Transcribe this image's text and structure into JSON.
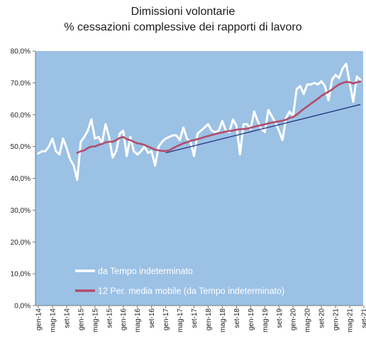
{
  "chart_data": {
    "type": "line",
    "title": "Dimissioni volontarie",
    "subtitle": "% cessazioni complessive dei rapporti di lavoro",
    "xlabel": "",
    "ylabel": "",
    "ylim": [
      0,
      80
    ],
    "y_ticks": [
      "0,0%",
      "10,0%",
      "20,0%",
      "30,0%",
      "40,0%",
      "50,0%",
      "60,0%",
      "70,0%",
      "80,0%"
    ],
    "grid": false,
    "legend_position": "bottom-left inside plot",
    "colors": {
      "plot_background": "#9bc1e5",
      "series_1": "#ffffff",
      "series_2": "#b24b6a",
      "trendline": "#1c2a78"
    },
    "x_ticks": [
      "gen-14",
      "mag-14",
      "set-14",
      "gen-15",
      "mag-15",
      "set-15",
      "gen-16",
      "mag-16",
      "set-16",
      "gen-17",
      "mag-17",
      "set-17",
      "gen-18",
      "mag-18",
      "set-18",
      "gen-19",
      "mag-19",
      "set-19",
      "gen-20",
      "mag-20",
      "set-20",
      "gen-21",
      "mag-21",
      "set-21"
    ],
    "x_start_month": "gen-14",
    "x_end_month": "set-21",
    "series": [
      {
        "name": "da Tempo indeterminato",
        "values": [
          47.8,
          48.5,
          48.5,
          50.0,
          52.5,
          48.5,
          47.5,
          52.5,
          49.5,
          46.0,
          44.0,
          39.5,
          51.5,
          53.0,
          55.0,
          58.5,
          52.5,
          53.0,
          51.0,
          57.0,
          53.0,
          46.5,
          48.5,
          54.0,
          55.0,
          47.0,
          53.0,
          48.5,
          47.5,
          48.5,
          50.0,
          48.0,
          48.5,
          44.0,
          50.0,
          51.5,
          52.5,
          53.0,
          53.5,
          53.5,
          52.0,
          56.0,
          52.5,
          51.5,
          47.0,
          54.0,
          55.0,
          56.0,
          57.0,
          55.0,
          54.5,
          55.0,
          58.0,
          55.0,
          54.5,
          58.5,
          56.5,
          47.5,
          57.0,
          57.0,
          55.5,
          61.0,
          58.0,
          55.5,
          54.5,
          61.5,
          59.5,
          57.5,
          55.0,
          52.0,
          59.0,
          61.0,
          59.5,
          68.0,
          69.0,
          66.5,
          69.5,
          69.5,
          70.0,
          69.5,
          70.5,
          69.0,
          64.5,
          71.0,
          72.5,
          71.5,
          74.5,
          76.0,
          70.0,
          64.0,
          72.0,
          71.0
        ]
      },
      {
        "name": "12 Per. media mobile (da Tempo indeterminato)",
        "values": [
          null,
          null,
          null,
          null,
          null,
          null,
          null,
          null,
          null,
          null,
          null,
          48.0,
          48.5,
          48.8,
          49.5,
          50.0,
          50.0,
          50.5,
          50.8,
          51.3,
          51.5,
          51.5,
          52.0,
          52.7,
          53.0,
          52.3,
          52.0,
          51.5,
          51.0,
          50.8,
          50.5,
          50.0,
          49.5,
          49.0,
          48.8,
          48.6,
          48.6,
          48.8,
          49.4,
          50.0,
          50.5,
          51.0,
          51.3,
          51.8,
          52.0,
          52.3,
          52.6,
          53.0,
          53.3,
          53.6,
          53.9,
          54.2,
          54.4,
          54.7,
          54.9,
          55.0,
          55.3,
          55.4,
          55.5,
          55.6,
          55.9,
          56.2,
          56.5,
          56.7,
          57.0,
          57.3,
          57.5,
          57.7,
          57.9,
          58.1,
          58.4,
          59.0,
          59.3,
          60.0,
          60.9,
          61.8,
          62.6,
          63.4,
          64.2,
          65.0,
          65.9,
          66.6,
          67.2,
          67.9,
          68.8,
          69.5,
          70.0,
          70.3,
          70.2,
          69.8,
          70.2,
          70.4
        ]
      }
    ],
    "trendline": {
      "start_value": 48.0,
      "end_value": 63.2
    },
    "legend": [
      {
        "label": "da Tempo indeterminato",
        "series": "series_1"
      },
      {
        "label": "12 Per. media mobile (da Tempo indeterminato)",
        "series": "series_2"
      }
    ]
  }
}
